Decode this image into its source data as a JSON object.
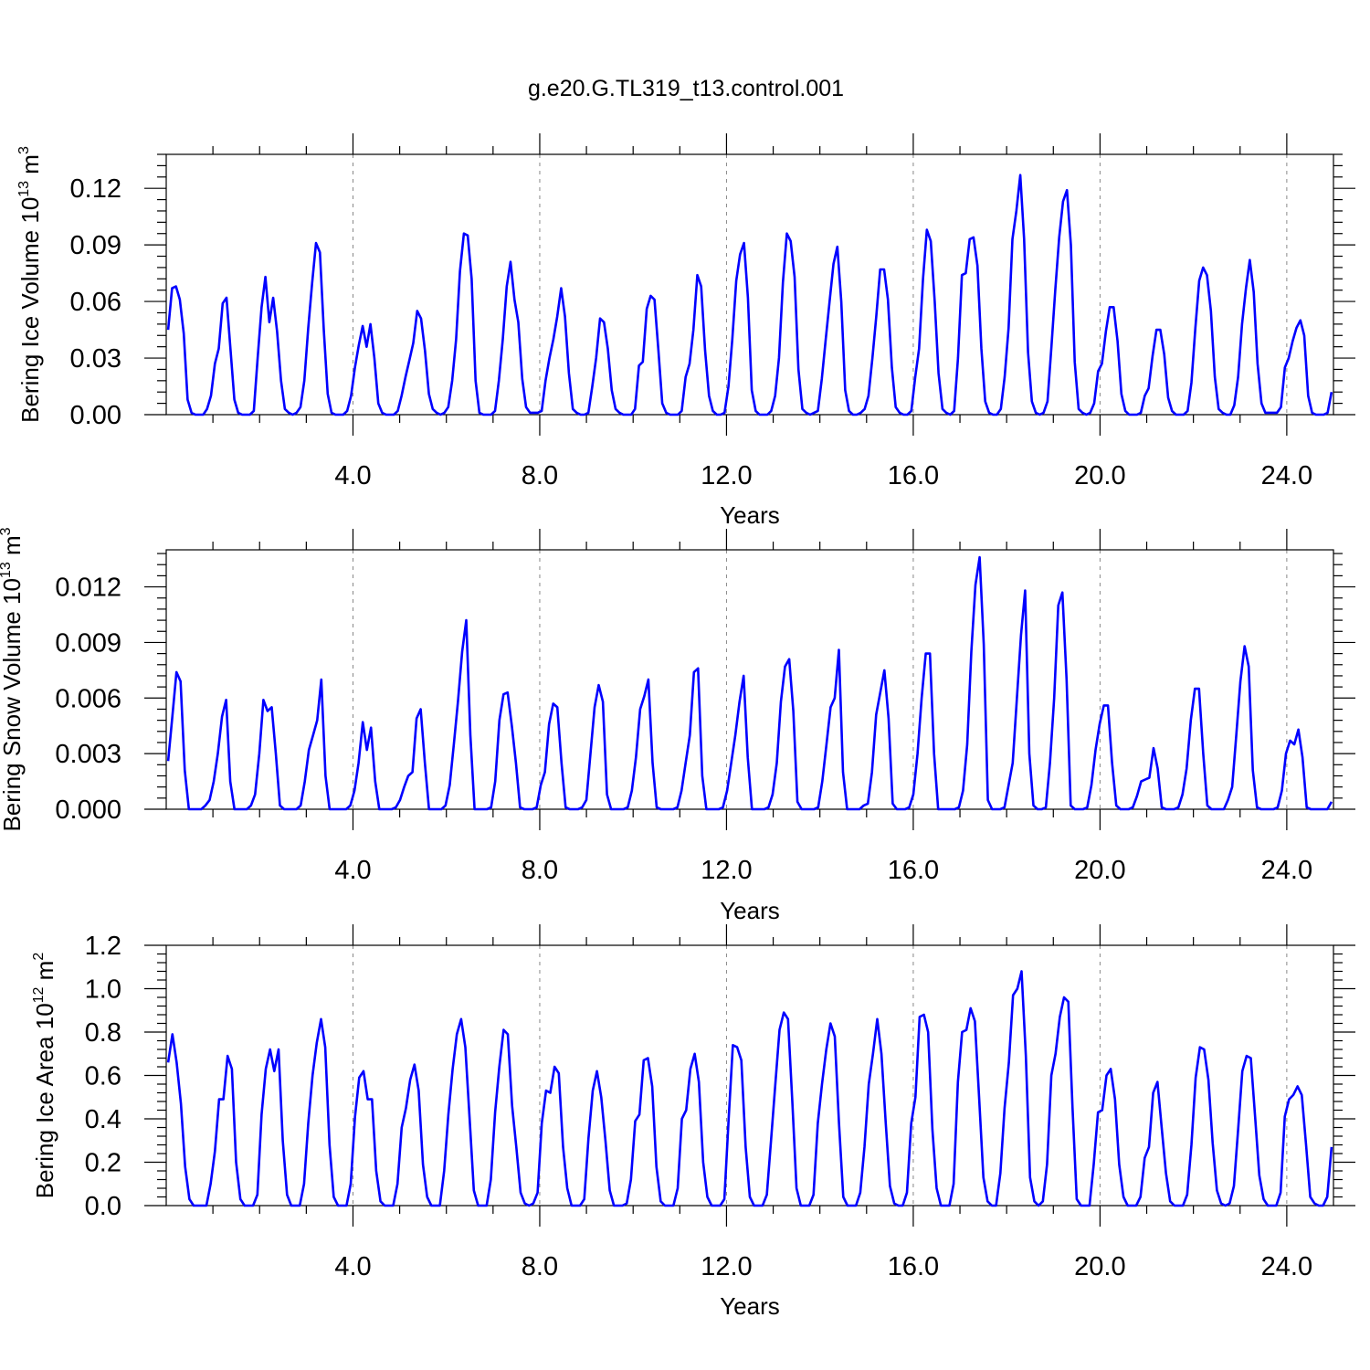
{
  "title": "g.e20.G.TL319_t13.control.001",
  "colors": {
    "series": "#0000ff",
    "axes": "#000000",
    "grid": "#888888"
  },
  "chart_data": [
    {
      "type": "line",
      "ylabel": "Bering Ice Volume 10",
      "ylabel_exp": "13",
      "ylabel_unit": " m",
      "ylabel_unit_exp": "3",
      "xlabel": "Years",
      "xlim": [
        0,
        25
      ],
      "ylim": [
        0,
        0.138
      ],
      "xticks": [
        4,
        8,
        12,
        16,
        20,
        24
      ],
      "xtick_labels": [
        "4.0",
        "8.0",
        "12.0",
        "16.0",
        "20.0",
        "24.0"
      ],
      "yticks": [
        0,
        0.03,
        0.06,
        0.09,
        0.12
      ],
      "ytick_labels": [
        "0.00",
        "0.03",
        "0.06",
        "0.09",
        "0.12"
      ],
      "grid": "vertical dashed at major x ticks",
      "series": [
        {
          "values": [
            0.045,
            0.067,
            0.068,
            0.061,
            0.043,
            0.008,
            0.001,
            0.0,
            0.0,
            0.0,
            0.003,
            0.01,
            0.027,
            0.035,
            0.059,
            0.062,
            0.035,
            0.008,
            0.001,
            0.0,
            0.0,
            0.0,
            0.002,
            0.03,
            0.057,
            0.073,
            0.049,
            0.062,
            0.044,
            0.018,
            0.003,
            0.001,
            0.0,
            0.001,
            0.004,
            0.018,
            0.046,
            0.07,
            0.091,
            0.086,
            0.045,
            0.011,
            0.001,
            0.0,
            0.0,
            0.0,
            0.002,
            0.01,
            0.025,
            0.037,
            0.047,
            0.036,
            0.048,
            0.03,
            0.006,
            0.001,
            0.0,
            0.0,
            0.0,
            0.002,
            0.01,
            0.02,
            0.029,
            0.038,
            0.055,
            0.051,
            0.034,
            0.011,
            0.003,
            0.001,
            0.0,
            0.001,
            0.004,
            0.018,
            0.04,
            0.076,
            0.096,
            0.095,
            0.072,
            0.018,
            0.001,
            0.0,
            0.0,
            0.0,
            0.002,
            0.018,
            0.04,
            0.068,
            0.081,
            0.061,
            0.049,
            0.019,
            0.004,
            0.001,
            0.001,
            0.001,
            0.002,
            0.018,
            0.03,
            0.04,
            0.052,
            0.067,
            0.052,
            0.022,
            0.003,
            0.001,
            0.0,
            0.0,
            0.001,
            0.015,
            0.03,
            0.051,
            0.049,
            0.035,
            0.013,
            0.003,
            0.001,
            0.0,
            0.0,
            0.0,
            0.003,
            0.026,
            0.028,
            0.056,
            0.063,
            0.061,
            0.034,
            0.006,
            0.001,
            0.0,
            0.0,
            0.0,
            0.002,
            0.02,
            0.027,
            0.045,
            0.074,
            0.068,
            0.034,
            0.01,
            0.002,
            0.0,
            0.0,
            0.001,
            0.015,
            0.04,
            0.071,
            0.085,
            0.091,
            0.062,
            0.013,
            0.002,
            0.0,
            0.0,
            0.0,
            0.002,
            0.01,
            0.03,
            0.07,
            0.096,
            0.092,
            0.073,
            0.024,
            0.003,
            0.001,
            0.0,
            0.001,
            0.002,
            0.019,
            0.04,
            0.06,
            0.08,
            0.089,
            0.06,
            0.013,
            0.002,
            0.0,
            0.0,
            0.001,
            0.003,
            0.01,
            0.03,
            0.052,
            0.077,
            0.077,
            0.061,
            0.025,
            0.004,
            0.001,
            0.0,
            0.0,
            0.002,
            0.02,
            0.035,
            0.072,
            0.098,
            0.092,
            0.06,
            0.022,
            0.003,
            0.001,
            0.0,
            0.002,
            0.03,
            0.074,
            0.075,
            0.093,
            0.094,
            0.079,
            0.035,
            0.007,
            0.001,
            0.0,
            0.0,
            0.003,
            0.02,
            0.046,
            0.093,
            0.108,
            0.127,
            0.093,
            0.033,
            0.007,
            0.001,
            0.0,
            0.001,
            0.007,
            0.036,
            0.066,
            0.094,
            0.113,
            0.119,
            0.09,
            0.028,
            0.003,
            0.001,
            0.0,
            0.001,
            0.006,
            0.023,
            0.027,
            0.044,
            0.057,
            0.057,
            0.039,
            0.011,
            0.002,
            0.0,
            0.0,
            0.0,
            0.001,
            0.01,
            0.014,
            0.031,
            0.045,
            0.045,
            0.032,
            0.009,
            0.002,
            0.0,
            0.0,
            0.0,
            0.002,
            0.017,
            0.046,
            0.071,
            0.078,
            0.074,
            0.055,
            0.02,
            0.003,
            0.001,
            0.0,
            0.0,
            0.005,
            0.02,
            0.048,
            0.067,
            0.082,
            0.065,
            0.027,
            0.006,
            0.001,
            0.001,
            0.001,
            0.001,
            0.004,
            0.025,
            0.03,
            0.039,
            0.046,
            0.05,
            0.042,
            0.01,
            0.001,
            0.0,
            0.0,
            0.0,
            0.001,
            0.012
          ]
        }
      ]
    },
    {
      "type": "line",
      "ylabel": "Bering Snow Volume 10",
      "ylabel_exp": "13",
      "ylabel_unit": " m",
      "ylabel_unit_exp": "3",
      "xlabel": "Years",
      "xlim": [
        0,
        25
      ],
      "ylim": [
        0,
        0.014
      ],
      "xticks": [
        4,
        8,
        12,
        16,
        20,
        24
      ],
      "xtick_labels": [
        "4.0",
        "8.0",
        "12.0",
        "16.0",
        "20.0",
        "24.0"
      ],
      "yticks": [
        0,
        0.003,
        0.006,
        0.009,
        0.012
      ],
      "ytick_labels": [
        "0.000",
        "0.003",
        "0.006",
        "0.009",
        "0.012"
      ],
      "grid": "vertical dashed at major x ticks",
      "series": [
        {
          "values": [
            0.0026,
            0.005,
            0.0074,
            0.0069,
            0.0021,
            0.0,
            0.0,
            0.0,
            0.0,
            0.0002,
            0.0005,
            0.0015,
            0.003,
            0.005,
            0.0059,
            0.0015,
            0.0,
            0.0,
            0.0,
            0.0,
            0.0002,
            0.0008,
            0.003,
            0.0059,
            0.0053,
            0.0055,
            0.003,
            0.0002,
            0.0,
            0.0,
            0.0,
            0.0,
            0.0002,
            0.0015,
            0.0032,
            0.004,
            0.0048,
            0.007,
            0.0018,
            0.0,
            0.0,
            0.0,
            0.0,
            0.0,
            0.0002,
            0.001,
            0.0025,
            0.0047,
            0.0032,
            0.0044,
            0.0015,
            0.0,
            0.0,
            0.0,
            0.0,
            0.0001,
            0.0005,
            0.0012,
            0.0018,
            0.002,
            0.0049,
            0.0054,
            0.0025,
            0.0,
            0.0,
            0.0,
            0.0,
            0.0002,
            0.0013,
            0.0035,
            0.0058,
            0.0085,
            0.0102,
            0.004,
            0.0,
            0.0,
            0.0,
            0.0,
            0.0001,
            0.0015,
            0.0048,
            0.0062,
            0.0063,
            0.0045,
            0.0025,
            0.0001,
            0.0,
            0.0,
            0.0,
            0.0001,
            0.0013,
            0.002,
            0.0046,
            0.0057,
            0.0055,
            0.0025,
            0.0001,
            0.0,
            0.0,
            0.0,
            0.0001,
            0.0005,
            0.003,
            0.0055,
            0.0067,
            0.0058,
            0.0008,
            0.0,
            0.0,
            0.0,
            0.0,
            0.0001,
            0.001,
            0.0028,
            0.0054,
            0.0061,
            0.007,
            0.0025,
            0.0001,
            0.0,
            0.0,
            0.0,
            0.0,
            0.0001,
            0.001,
            0.0025,
            0.004,
            0.0074,
            0.0076,
            0.0018,
            0.0,
            0.0,
            0.0,
            0.0,
            0.0001,
            0.001,
            0.0025,
            0.004,
            0.0058,
            0.0072,
            0.0028,
            0.0,
            0.0,
            0.0,
            0.0,
            0.0001,
            0.0008,
            0.0025,
            0.0058,
            0.0077,
            0.0081,
            0.0053,
            0.0004,
            0.0,
            0.0,
            0.0,
            0.0,
            0.0001,
            0.0015,
            0.0035,
            0.0055,
            0.006,
            0.0086,
            0.002,
            0.0,
            0.0,
            0.0,
            0.0,
            0.0002,
            0.0003,
            0.002,
            0.0051,
            0.0063,
            0.0075,
            0.0049,
            0.0003,
            0.0,
            0.0,
            0.0,
            0.0001,
            0.0008,
            0.003,
            0.006,
            0.0084,
            0.0084,
            0.003,
            0.0,
            0.0,
            0.0,
            0.0,
            0.0,
            0.0001,
            0.001,
            0.0035,
            0.0085,
            0.0121,
            0.0136,
            0.0089,
            0.0005,
            0.0,
            0.0,
            0.0,
            0.0001,
            0.0013,
            0.0025,
            0.006,
            0.0094,
            0.0118,
            0.003,
            0.0002,
            0.0,
            0.0,
            0.0001,
            0.0025,
            0.006,
            0.011,
            0.0117,
            0.007,
            0.0002,
            0.0,
            0.0,
            0.0,
            0.0001,
            0.0013,
            0.0032,
            0.0046,
            0.0056,
            0.0056,
            0.0025,
            0.0002,
            0.0,
            0.0,
            0.0,
            0.0001,
            0.0007,
            0.0015,
            0.0016,
            0.0017,
            0.0033,
            0.0022,
            0.0001,
            0.0,
            0.0,
            0.0,
            0.0001,
            0.0008,
            0.0022,
            0.0048,
            0.0065,
            0.0065,
            0.003,
            0.0002,
            0.0,
            0.0,
            0.0,
            0.0,
            0.0005,
            0.0012,
            0.004,
            0.0069,
            0.0088,
            0.0077,
            0.0021,
            0.0001,
            0.0,
            0.0,
            0.0,
            0.0,
            0.0001,
            0.001,
            0.003,
            0.0037,
            0.0035,
            0.0043,
            0.0028,
            0.0001,
            0.0,
            0.0,
            0.0,
            0.0,
            0.0,
            0.0004
          ]
        }
      ]
    },
    {
      "type": "line",
      "ylabel": "Bering Ice Area 10",
      "ylabel_exp": "12",
      "ylabel_unit": " m",
      "ylabel_unit_exp": "2",
      "xlabel": "Years",
      "xlim": [
        0,
        25
      ],
      "ylim": [
        0,
        1.2
      ],
      "xticks": [
        4,
        8,
        12,
        16,
        20,
        24
      ],
      "xtick_labels": [
        "4.0",
        "8.0",
        "12.0",
        "16.0",
        "20.0",
        "24.0"
      ],
      "yticks": [
        0,
        0.2,
        0.4,
        0.6,
        0.8,
        1.0,
        1.2
      ],
      "ytick_labels": [
        "0.0",
        "0.2",
        "0.4",
        "0.6",
        "0.8",
        "1.0",
        "1.2"
      ],
      "grid": "vertical dashed at major x ticks",
      "series": [
        {
          "values": [
            0.66,
            0.79,
            0.66,
            0.47,
            0.18,
            0.03,
            0.0,
            0.0,
            0.0,
            0.0,
            0.1,
            0.25,
            0.49,
            0.49,
            0.69,
            0.63,
            0.2,
            0.03,
            0.0,
            0.0,
            0.0,
            0.05,
            0.42,
            0.63,
            0.72,
            0.62,
            0.72,
            0.3,
            0.05,
            0.0,
            0.0,
            0.0,
            0.1,
            0.38,
            0.6,
            0.75,
            0.86,
            0.73,
            0.28,
            0.04,
            0.0,
            0.0,
            0.0,
            0.1,
            0.41,
            0.59,
            0.62,
            0.49,
            0.49,
            0.16,
            0.02,
            0.0,
            0.0,
            0.0,
            0.1,
            0.36,
            0.45,
            0.58,
            0.65,
            0.53,
            0.19,
            0.04,
            0.0,
            0.0,
            0.0,
            0.16,
            0.42,
            0.63,
            0.79,
            0.86,
            0.73,
            0.4,
            0.07,
            0.0,
            0.0,
            0.0,
            0.12,
            0.43,
            0.64,
            0.81,
            0.79,
            0.46,
            0.27,
            0.06,
            0.01,
            0.0,
            0.01,
            0.06,
            0.38,
            0.53,
            0.52,
            0.64,
            0.61,
            0.27,
            0.08,
            0.0,
            0.0,
            0.0,
            0.03,
            0.31,
            0.53,
            0.62,
            0.5,
            0.3,
            0.07,
            0.0,
            0.0,
            0.0,
            0.01,
            0.12,
            0.39,
            0.42,
            0.67,
            0.68,
            0.55,
            0.18,
            0.02,
            0.0,
            0.0,
            0.0,
            0.08,
            0.4,
            0.44,
            0.63,
            0.7,
            0.57,
            0.2,
            0.04,
            0.0,
            0.0,
            0.0,
            0.03,
            0.4,
            0.74,
            0.73,
            0.67,
            0.27,
            0.04,
            0.0,
            0.0,
            0.0,
            0.05,
            0.3,
            0.56,
            0.81,
            0.89,
            0.86,
            0.48,
            0.08,
            0.0,
            0.0,
            0.0,
            0.05,
            0.38,
            0.56,
            0.72,
            0.84,
            0.78,
            0.38,
            0.04,
            0.0,
            0.0,
            0.0,
            0.06,
            0.27,
            0.56,
            0.7,
            0.86,
            0.7,
            0.38,
            0.09,
            0.01,
            0.0,
            0.0,
            0.06,
            0.38,
            0.5,
            0.87,
            0.88,
            0.8,
            0.35,
            0.08,
            0.0,
            0.0,
            0.0,
            0.1,
            0.57,
            0.8,
            0.81,
            0.91,
            0.85,
            0.5,
            0.13,
            0.02,
            0.0,
            0.0,
            0.15,
            0.45,
            0.66,
            0.97,
            1.0,
            1.08,
            0.69,
            0.13,
            0.02,
            0.0,
            0.02,
            0.19,
            0.6,
            0.7,
            0.87,
            0.96,
            0.94,
            0.45,
            0.03,
            0.0,
            0.0,
            0.0,
            0.19,
            0.43,
            0.44,
            0.6,
            0.63,
            0.49,
            0.19,
            0.04,
            0.0,
            0.0,
            0.0,
            0.04,
            0.22,
            0.27,
            0.52,
            0.57,
            0.36,
            0.15,
            0.02,
            0.0,
            0.0,
            0.0,
            0.05,
            0.28,
            0.59,
            0.73,
            0.72,
            0.58,
            0.29,
            0.07,
            0.01,
            0.0,
            0.01,
            0.09,
            0.35,
            0.62,
            0.69,
            0.68,
            0.41,
            0.14,
            0.03,
            0.0,
            0.0,
            0.0,
            0.06,
            0.41,
            0.49,
            0.51,
            0.55,
            0.51,
            0.28,
            0.04,
            0.01,
            0.0,
            0.0,
            0.04,
            0.27
          ]
        }
      ]
    }
  ]
}
